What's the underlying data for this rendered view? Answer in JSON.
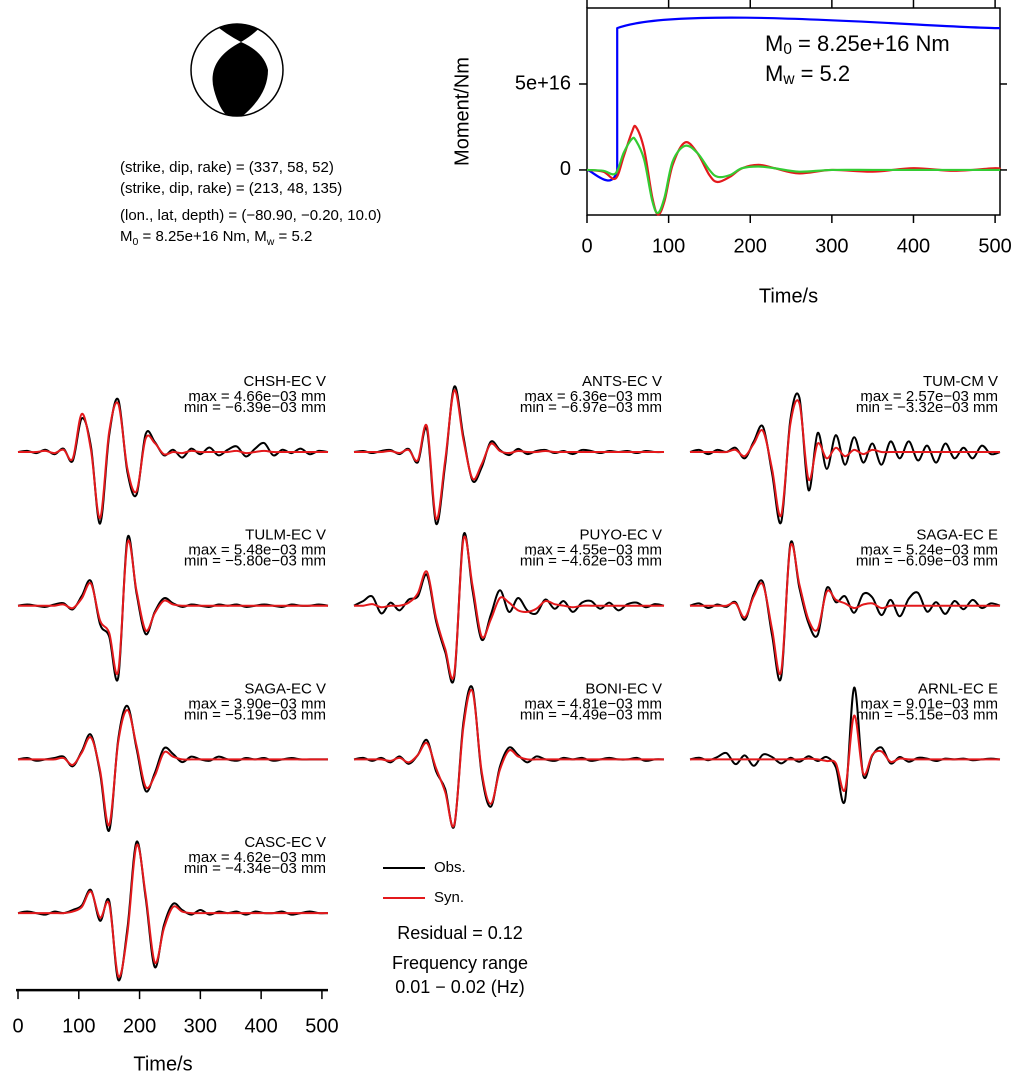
{
  "mechanism": {
    "planes": [
      "(strike, dip, rake) = (337, 58, 52)",
      "(strike, dip, rake) = (213, 48, 135)"
    ],
    "location": "(lon., lat, depth) = (−80.90, −0.20, 10.0)",
    "moment_line": [
      "M",
      "0",
      " = 8.25e+16 Nm, M",
      "w",
      " = 5.2"
    ]
  },
  "legend": {
    "entries": [
      {
        "name": "Obs.",
        "color": "#000000"
      },
      {
        "name": "Syn.",
        "color": "#e3191c"
      }
    ],
    "residual": "Residual = 0.12",
    "frequency_title": "Frequency range",
    "frequency_range": "0.01 − 0.02 (Hz)"
  },
  "chart_data": [
    {
      "type": "line",
      "ylabel": "Moment/Nm",
      "xlabel": "Time/s",
      "xlim": [
        0,
        506
      ],
      "xticks": [
        0,
        100,
        200,
        300,
        400,
        500
      ],
      "ylim": [
        -2.62e+16,
        9.42e+16
      ],
      "yticks": [
        0,
        {
          "value": 5e+16,
          "label": "5e+16"
        }
      ],
      "annotations": [
        [
          "M",
          "0",
          " = 8.25e+16 Nm"
        ],
        [
          "M",
          "w",
          " = 5.2"
        ]
      ],
      "series": [
        {
          "color": "#0000ff",
          "x": [
            0,
            37,
            37,
            506
          ],
          "values": [
            0,
            0,
            8.25e+16,
            8.25e+16
          ]
        },
        {
          "color": "#e3191c",
          "x": [
            0,
            20,
            35,
            45,
            55,
            60,
            70,
            80,
            87,
            95,
            105,
            120,
            135,
            150,
            160,
            175,
            190,
            210,
            230,
            260,
            300,
            350,
            400,
            450,
            500,
            506
          ],
          "values": [
            0,
            -1000000000000000.0,
            -5000000000000000.0,
            8000000000000000.0,
            2.2e+16,
            2.5e+16,
            1.2e+16,
            -1.6e+16,
            -2.6e+16,
            -1.8e+16,
            3000000000000000.0,
            1.6e+16,
            1e+16,
            -3000000000000000.0,
            -7000000000000000.0,
            -4000000000000000.0,
            1000000000000000.0,
            3000000000000000.0,
            1000000000000000.0,
            -2000000000000000.0,
            0,
            -1000000000000000.0,
            1000000000000000.0,
            -500000000000000.0,
            1000000000000000.0,
            0
          ]
        },
        {
          "color": "#33cc33",
          "x": [
            0,
            20,
            35,
            45,
            55,
            60,
            70,
            80,
            87,
            95,
            105,
            120,
            135,
            150,
            160,
            175,
            190,
            210,
            230,
            260,
            300,
            350,
            400,
            450,
            500,
            506
          ],
          "values": [
            0,
            -500000000000000.0,
            -2000000000000000.0,
            1e+16,
            1.8e+16,
            1.7e+16,
            6000000000000000.0,
            -1.8e+16,
            -2.5e+16,
            -1.6e+16,
            5000000000000000.0,
            1.4e+16,
            1e+16,
            0,
            -4000000000000000.0,
            -3000000000000000.0,
            1000000000000000.0,
            2000000000000000.0,
            1000000000000000.0,
            -1000000000000000.0,
            0,
            0,
            0,
            0,
            0,
            0
          ]
        }
      ]
    },
    {
      "type": "waveform",
      "station": "CHSH-EC V",
      "max_label": "max = 4.66e−03 mm",
      "min_label": "min = −6.39e−03 mm",
      "ylim": [
        -0.0066,
        0.0066
      ],
      "obs": [
        0,
        0.0001,
        -0.0001,
        0.0002,
        -0.0002,
        0.0003,
        -0.0008,
        0.003,
        0.0005,
        -0.00639,
        0.0015,
        0.00466,
        -0.0018,
        -0.0038,
        0.0016,
        0.0009,
        -0.0003,
        0.0002,
        -0.0005,
        0.0003,
        -0.0002,
        0.0004,
        -0.0003,
        0.0002,
        0.0005,
        -0.0004,
        0.0003,
        0.0008,
        -0.0003,
        0.0002,
        -0.0001,
        0.0003,
        -0.0002,
        0.0001,
        0
      ],
      "syn": [
        0,
        0,
        0,
        0.0001,
        -0.0001,
        0.0002,
        -0.0006,
        0.0034,
        0.0002,
        -0.0059,
        0.0018,
        0.0043,
        -0.0015,
        -0.0035,
        0.0012,
        0.0008,
        -0.0002,
        0,
        -0.0001,
        0.0001,
        0,
        0,
        0,
        0,
        0.0001,
        -0.0001,
        0,
        0.0001,
        0,
        0,
        0,
        0,
        0,
        0,
        0
      ]
    },
    {
      "type": "waveform",
      "station": "ANTS-EC V",
      "max_label": "max = 6.36e−03 mm",
      "min_label": "min = −6.97e−03 mm",
      "ylim": [
        -0.0072,
        0.0072
      ],
      "obs": [
        0,
        0.0001,
        -0.0001,
        0.0001,
        0.0002,
        -0.0002,
        0.0003,
        -0.001,
        0.0022,
        -0.00697,
        -0.0012,
        0.00636,
        0.0015,
        -0.0028,
        -0.0015,
        0.001,
        0.0002,
        -0.0003,
        0.0003,
        -0.0002,
        0.0001,
        0.0002,
        -0.0001,
        0.0001,
        -0.0002,
        0.0002,
        0.0001,
        -0.0001,
        0.0001,
        0,
        0.0001,
        -0.0001,
        0.0001,
        0,
        0
      ],
      "syn": [
        0,
        0,
        0,
        0,
        0.0001,
        -0.0001,
        0.0002,
        -0.0008,
        0.0025,
        -0.0065,
        -0.0008,
        0.006,
        0.0012,
        -0.0026,
        -0.0012,
        0.0008,
        0.0001,
        -0.0001,
        0.0001,
        0,
        0,
        0.0001,
        0,
        0,
        0,
        0,
        0,
        0,
        0,
        0,
        0,
        0,
        0,
        0,
        0
      ]
    },
    {
      "type": "waveform",
      "station": "TUM-CM V",
      "max_label": "max = 2.57e−03 mm",
      "min_label": "min = −3.32e−03 mm",
      "ylim": [
        -0.0035,
        0.0035
      ],
      "obs": [
        0,
        0.0001,
        -0.0001,
        0.0001,
        0,
        0.0002,
        -0.0003,
        0.0005,
        0.0012,
        -0.001,
        -0.00332,
        0.0015,
        0.00257,
        -0.0018,
        0.0009,
        -0.0008,
        0.0008,
        -0.0006,
        0.0007,
        -0.0005,
        0.0004,
        -0.0006,
        0.0005,
        -0.0003,
        0.0005,
        -0.0004,
        0.0003,
        -0.0005,
        0.0004,
        -0.0003,
        0.0002,
        -0.0003,
        0.0003,
        -0.0001,
        0
      ],
      "syn": [
        0,
        0,
        0,
        0,
        0,
        0.0001,
        -0.0002,
        0.0004,
        0.001,
        -0.0008,
        -0.003,
        0.0013,
        0.0023,
        -0.0013,
        0.0004,
        -0.0003,
        0.0002,
        -0.0002,
        0.0001,
        -0.0001,
        0.0001,
        0,
        0,
        0,
        0,
        0,
        0,
        0,
        0,
        0,
        0,
        0,
        0,
        0,
        0
      ]
    },
    {
      "type": "waveform",
      "station": "TULM-EC V",
      "max_label": "max = 5.48e−03 mm",
      "min_label": "min = −5.80e−03 mm",
      "ylim": [
        -0.006,
        0.006
      ],
      "obs": [
        0,
        0.0001,
        0,
        -0.0001,
        0.0001,
        0.0002,
        -0.0003,
        0.0008,
        0.002,
        -0.0015,
        -0.0025,
        -0.0058,
        0.00548,
        0.001,
        -0.0023,
        -0.0005,
        0.0006,
        0.0002,
        -0.0001,
        0.0001,
        0,
        -0.0001,
        0.0001,
        0,
        0.0001,
        -0.0001,
        0,
        0.0001,
        0,
        -0.0001,
        0.0001,
        0,
        0,
        0.0001,
        0
      ],
      "syn": [
        0,
        0,
        0,
        0,
        0,
        0.0001,
        -0.0002,
        0.0006,
        0.0018,
        -0.0012,
        -0.0022,
        -0.0053,
        0.0051,
        0.0012,
        -0.002,
        -0.0006,
        0.0004,
        0.0001,
        0,
        0,
        0,
        0,
        0,
        0,
        0,
        0,
        0,
        0,
        0,
        0,
        0,
        0,
        0,
        0,
        0
      ]
    },
    {
      "type": "waveform",
      "station": "PUYO-EC V",
      "max_label": "max = 4.55e−03 mm",
      "min_label": "min = −4.62e−03 mm",
      "ylim": [
        -0.0048,
        0.0048
      ],
      "obs": [
        0,
        0.0003,
        0.0006,
        -0.0005,
        0.0002,
        -0.0003,
        0.0004,
        0.0006,
        0.002,
        -0.001,
        -0.003,
        -0.00462,
        0.00455,
        0.001,
        -0.0022,
        -0.0006,
        0.001,
        -0.0004,
        0.0005,
        -0.0003,
        -0.0005,
        0.0004,
        -0.0002,
        0.0003,
        -0.0004,
        0.0002,
        0.0003,
        -0.0002,
        0.0002,
        -0.0003,
        0.0001,
        0.0002,
        -0.0001,
        0.0001,
        0
      ],
      "syn": [
        0,
        0,
        0.0001,
        -0.0001,
        0,
        0,
        0.0002,
        0.0008,
        0.0022,
        -0.0008,
        -0.0028,
        -0.0044,
        0.0043,
        0.0013,
        -0.002,
        -0.0009,
        0.0005,
        0.0002,
        -0.0003,
        -0.0004,
        -0.0002,
        0.0003,
        0.0001,
        0,
        -0.0001,
        0,
        0,
        0,
        0,
        0,
        0,
        0,
        0,
        0,
        0
      ]
    },
    {
      "type": "waveform",
      "station": "SAGA-EC E",
      "max_label": "max = 5.24e−03 mm",
      "min_label": "min = −6.09e−03 mm",
      "ylim": [
        -0.0063,
        0.0063
      ],
      "obs": [
        0,
        0.0002,
        -0.0002,
        0.0001,
        -0.0001,
        0.0003,
        -0.0012,
        0.001,
        0.002,
        -0.0025,
        -0.00609,
        0.00524,
        0.0015,
        -0.0015,
        -0.0025,
        0.0015,
        0.0003,
        0.0008,
        -0.0006,
        0.001,
        0.0007,
        -0.0008,
        0.0005,
        -0.0009,
        0.0006,
        0.0011,
        -0.0005,
        0.0003,
        -0.0007,
        0.0004,
        -0.0003,
        0.0005,
        -0.0002,
        0.0002,
        0
      ],
      "syn": [
        0,
        0,
        0,
        0,
        0,
        0.0002,
        -0.001,
        0.0008,
        0.0018,
        -0.002,
        -0.0056,
        0.005,
        0.0018,
        -0.0012,
        -0.002,
        0.0012,
        0.0005,
        0.0002,
        -0.0002,
        0.0001,
        0.0002,
        -0.0002,
        0,
        0,
        0,
        0,
        0,
        0,
        0,
        0,
        0,
        0,
        0,
        0,
        0
      ]
    },
    {
      "type": "waveform",
      "station": "SAGA-EC V",
      "max_label": "max = 3.90e−03 mm",
      "min_label": "min = −5.19e−03 mm",
      "ylim": [
        -0.0054,
        0.0054
      ],
      "obs": [
        0,
        0.0001,
        -0.0001,
        0,
        0.0001,
        0.0002,
        -0.0005,
        0.0006,
        0.0018,
        -0.001,
        -0.00519,
        0.0015,
        0.0039,
        0.0008,
        -0.0023,
        -0.001,
        0.0008,
        0.0004,
        -0.0002,
        0.0002,
        0,
        -0.0001,
        0.0002,
        0,
        -0.0001,
        0.0001,
        0,
        0.0001,
        -0.0001,
        0,
        0.0001,
        0,
        0,
        0,
        0
      ],
      "syn": [
        0,
        0,
        0,
        0,
        0,
        0.0001,
        -0.0004,
        0.0005,
        0.0016,
        -0.0008,
        -0.0048,
        0.0013,
        0.0036,
        0.001,
        -0.002,
        -0.0012,
        0.0005,
        0.0002,
        0,
        0,
        0,
        0,
        0,
        0,
        0,
        0,
        0,
        0,
        0,
        0,
        0,
        0,
        0,
        0,
        0
      ]
    },
    {
      "type": "waveform",
      "station": "BONI-EC V",
      "max_label": "max = 4.81e−03 mm",
      "min_label": "min = −4.49e−03 mm",
      "ylim": [
        -0.005,
        0.005
      ],
      "obs": [
        0,
        0.0001,
        -0.0001,
        0.0001,
        -0.0002,
        0.0002,
        -0.0003,
        0.0003,
        0.0013,
        -0.0008,
        -0.002,
        -0.00449,
        0.0025,
        0.00481,
        -0.001,
        -0.0032,
        -0.0005,
        0.0008,
        0.0003,
        -0.0002,
        0.0002,
        0,
        -0.0001,
        0.0001,
        0,
        0.0001,
        -0.0001,
        0,
        0.0001,
        0,
        0,
        0.0001,
        -0.0001,
        0,
        0
      ],
      "syn": [
        0,
        0,
        0,
        0,
        -0.0001,
        0.0001,
        -0.0002,
        0.0003,
        0.0011,
        -0.0006,
        -0.0022,
        -0.0044,
        0.0022,
        0.0046,
        -0.0008,
        -0.003,
        -0.0007,
        0.0006,
        0.0002,
        0,
        0,
        0,
        0,
        0,
        0,
        0,
        0,
        0,
        0,
        0,
        0,
        0,
        0,
        0,
        0
      ]
    },
    {
      "type": "waveform",
      "station": "ARNL-EC E",
      "max_label": "max = 9.01e−03 mm",
      "min_label": "min = −5.15e−03 mm",
      "ylim": [
        -0.0093,
        0.0093
      ],
      "obs": [
        0,
        0.0002,
        -0.0001,
        0.0003,
        0.0008,
        -0.0006,
        0.0005,
        -0.0008,
        0.0006,
        0.0003,
        -0.0005,
        0.0002,
        -0.0003,
        0.0004,
        -0.0002,
        0.0003,
        -0.001,
        -0.00515,
        0.00901,
        -0.002,
        0.0005,
        0.0015,
        -0.0005,
        0.0003,
        -0.0003,
        0.0002,
        0.0001,
        -0.0002,
        0.0001,
        0,
        0.0001,
        -0.0001,
        0,
        0.0001,
        0
      ],
      "syn": [
        0,
        0,
        0,
        0,
        0,
        0,
        0,
        0,
        0,
        0,
        0,
        0,
        0,
        0.0001,
        0,
        -0.0002,
        -0.0005,
        -0.0038,
        0.0055,
        -0.0018,
        0.0006,
        0.001,
        -0.0003,
        0.0001,
        0,
        0,
        0,
        0,
        0,
        0,
        0,
        0,
        0,
        0,
        0
      ]
    },
    {
      "type": "waveform",
      "station": "CASC-EC V",
      "max_label": "max = 4.62e−03 mm",
      "min_label": "min = −4.34e−03 mm",
      "ylim": [
        -0.0048,
        0.0048
      ],
      "xlabel": "Time/s",
      "xlim": [
        0,
        510
      ],
      "xticks": [
        0,
        100,
        200,
        300,
        400,
        500
      ],
      "x": [
        0,
        15,
        30,
        45,
        60,
        75,
        90,
        105,
        120,
        135,
        150,
        165,
        180,
        195,
        210,
        225,
        240,
        255,
        270,
        285,
        300,
        315,
        330,
        345,
        360,
        375,
        390,
        405,
        420,
        435,
        450,
        465,
        480,
        495,
        510
      ],
      "obs": [
        0,
        0.0001,
        0,
        -0.0001,
        0.0001,
        0,
        0.0002,
        0.0005,
        0.0015,
        -0.0005,
        0.0008,
        -0.00434,
        -0.001,
        0.00462,
        0.001,
        -0.0035,
        -0.0008,
        0.0006,
        0.0002,
        -0.0001,
        0.0002,
        -0.0001,
        0.0001,
        0,
        0.0001,
        -0.0001,
        0.0001,
        0,
        0,
        0.0001,
        -0.0001,
        0,
        0.0001,
        0,
        0
      ],
      "syn": [
        0,
        0,
        0,
        0,
        0,
        0,
        0.0001,
        0.0004,
        0.0014,
        -0.0003,
        0.0006,
        -0.0041,
        -0.0013,
        0.0044,
        0.0012,
        -0.0032,
        -0.001,
        0.0004,
        0.0001,
        0,
        0,
        0,
        0,
        0,
        0,
        0,
        0,
        0,
        0,
        0,
        0,
        0,
        0,
        0,
        0
      ]
    }
  ]
}
